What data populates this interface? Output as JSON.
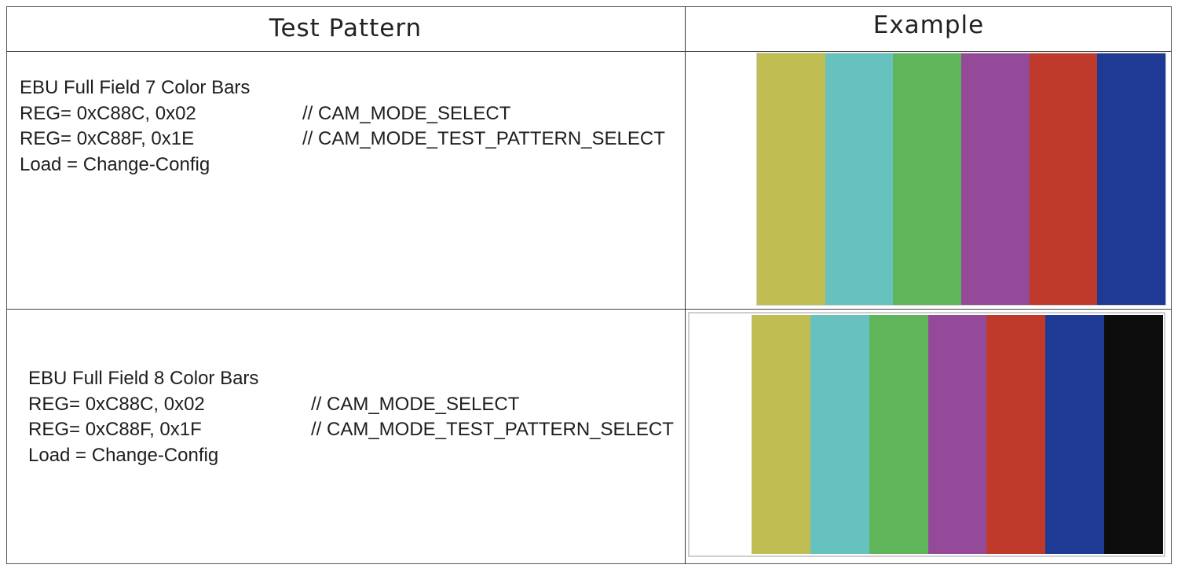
{
  "headers": {
    "test_pattern": "Test Pattern",
    "example": "Example"
  },
  "rows": [
    {
      "title": "EBU Full Field 7 Color Bars",
      "reg1": "REG= 0xC88C, 0x02",
      "comment1": "// CAM_MODE_SELECT",
      "reg2": "REG= 0xC88F, 0x1E",
      "comment2": "// CAM_MODE_TEST_PATTERN_SELECT",
      "load": "Load = Change-Config",
      "bar_colors": [
        "#ffffff",
        "#c0bd52",
        "#67c1bf",
        "#60b45a",
        "#944a98",
        "#c03a2b",
        "#1e3a94"
      ]
    },
    {
      "title": "EBU Full Field 8 Color Bars",
      "reg1": "REG= 0xC88C, 0x02",
      "comment1": "// CAM_MODE_SELECT",
      "reg2": "REG= 0xC88F, 0x1F",
      "comment2": "// CAM_MODE_TEST_PATTERN_SELECT",
      "load": "Load = Change-Config",
      "bar_colors": [
        "#ffffff",
        "#c0bd52",
        "#67c1bf",
        "#60b45a",
        "#944a98",
        "#c03a2b",
        "#1e3a94",
        "#0d0d0d"
      ]
    }
  ]
}
